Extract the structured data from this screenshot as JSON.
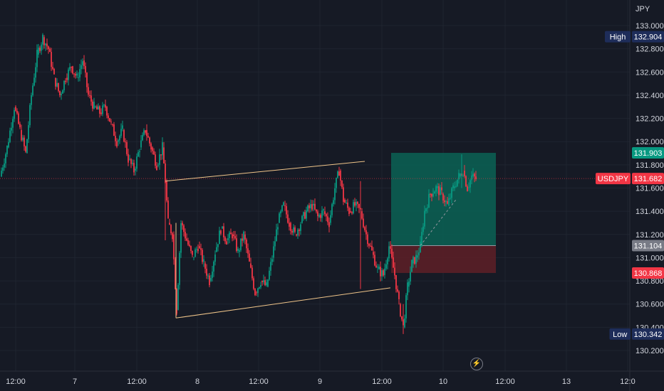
{
  "chart_data": {
    "type": "candlestick",
    "symbol": "USDJPY",
    "currency": "JPY",
    "price_axis": {
      "min": 130.1,
      "max": 133.1,
      "ticks": [
        "133.000",
        "132.800",
        "132.600",
        "132.400",
        "132.200",
        "132.000",
        "131.800",
        "131.600",
        "131.400",
        "131.200",
        "131.000",
        "130.800",
        "130.600",
        "130.400",
        "130.200"
      ],
      "tick_values": [
        133.0,
        132.8,
        132.6,
        132.4,
        132.2,
        132.0,
        131.8,
        131.6,
        131.4,
        131.2,
        131.0,
        130.8,
        130.6,
        130.4,
        130.2
      ]
    },
    "time_axis": {
      "labels": [
        "12:00",
        "7",
        "12:00",
        "8",
        "12:00",
        "9",
        "12:00",
        "10",
        "12:00",
        "13",
        "12:0"
      ],
      "slots": [
        22,
        105,
        192,
        277,
        363,
        449,
        536,
        622,
        709,
        795,
        881
      ]
    },
    "price_tags": {
      "high": {
        "label": "High",
        "value": "132.904",
        "price": 132.904,
        "color": "#1e2d5a"
      },
      "target": {
        "value": "131.903",
        "price": 131.903,
        "color": "#089981"
      },
      "current": {
        "label": "USDJPY",
        "value": "131.682",
        "price": 131.682,
        "color": "#f23645"
      },
      "entry": {
        "value": "131.104",
        "price": 131.104,
        "color": "#787b86"
      },
      "stop": {
        "value": "130.868",
        "price": 130.868,
        "color": "#f23645"
      },
      "low": {
        "label": "Low",
        "value": "130.342",
        "price": 130.342,
        "color": "#1e2d5a"
      }
    },
    "position": {
      "entry": 131.104,
      "target": 131.903,
      "stop": 130.868,
      "profit_color": "#0b5e52",
      "loss_color": "#5a1f27",
      "start_slot": 549,
      "end_slot": 696
    },
    "channel": {
      "upper": [
        [
          232,
          131.66
        ],
        [
          512,
          131.83
        ]
      ],
      "lower": [
        [
          247,
          130.48
        ],
        [
          548,
          130.74
        ]
      ],
      "color": "#f0c58a"
    },
    "candles_path": [
      [
        0,
        131.7
      ],
      [
        10,
        131.95
      ],
      [
        20,
        132.3
      ],
      [
        28,
        132.1
      ],
      [
        36,
        131.9
      ],
      [
        44,
        132.4
      ],
      [
        52,
        132.75
      ],
      [
        60,
        132.9
      ],
      [
        68,
        132.8
      ],
      [
        76,
        132.55
      ],
      [
        84,
        132.4
      ],
      [
        92,
        132.55
      ],
      [
        100,
        132.65
      ],
      [
        108,
        132.55
      ],
      [
        116,
        132.7
      ],
      [
        124,
        132.4
      ],
      [
        132,
        132.3
      ],
      [
        140,
        132.25
      ],
      [
        148,
        132.3
      ],
      [
        156,
        132.15
      ],
      [
        164,
        132.0
      ],
      [
        172,
        132.1
      ],
      [
        180,
        131.85
      ],
      [
        188,
        131.75
      ],
      [
        196,
        131.95
      ],
      [
        204,
        132.1
      ],
      [
        212,
        131.95
      ],
      [
        220,
        131.8
      ],
      [
        228,
        131.95
      ],
      [
        232,
        131.66
      ],
      [
        236,
        131.3
      ],
      [
        242,
        131.2
      ],
      [
        248,
        130.55
      ],
      [
        254,
        131.3
      ],
      [
        262,
        131.15
      ],
      [
        270,
        131.0
      ],
      [
        278,
        131.1
      ],
      [
        286,
        130.95
      ],
      [
        294,
        130.8
      ],
      [
        302,
        131.05
      ],
      [
        310,
        131.25
      ],
      [
        318,
        131.15
      ],
      [
        326,
        131.2
      ],
      [
        334,
        131.05
      ],
      [
        342,
        131.2
      ],
      [
        350,
        130.95
      ],
      [
        358,
        130.7
      ],
      [
        366,
        130.8
      ],
      [
        374,
        130.75
      ],
      [
        382,
        131.0
      ],
      [
        390,
        131.3
      ],
      [
        398,
        131.45
      ],
      [
        406,
        131.3
      ],
      [
        414,
        131.2
      ],
      [
        422,
        131.3
      ],
      [
        430,
        131.4
      ],
      [
        438,
        131.45
      ],
      [
        446,
        131.35
      ],
      [
        454,
        131.4
      ],
      [
        462,
        131.3
      ],
      [
        470,
        131.6
      ],
      [
        476,
        131.75
      ],
      [
        482,
        131.5
      ],
      [
        490,
        131.4
      ],
      [
        498,
        131.45
      ],
      [
        506,
        131.4
      ],
      [
        514,
        131.2
      ],
      [
        522,
        131.05
      ],
      [
        530,
        130.9
      ],
      [
        538,
        130.85
      ],
      [
        546,
        131.1
      ],
      [
        554,
        130.85
      ],
      [
        560,
        130.6
      ],
      [
        566,
        130.4
      ],
      [
        572,
        130.75
      ],
      [
        578,
        130.95
      ],
      [
        584,
        131.0
      ],
      [
        590,
        131.1
      ],
      [
        596,
        131.4
      ],
      [
        604,
        131.55
      ],
      [
        612,
        131.6
      ],
      [
        620,
        131.55
      ],
      [
        628,
        131.45
      ],
      [
        636,
        131.6
      ],
      [
        644,
        131.7
      ],
      [
        650,
        131.75
      ],
      [
        656,
        131.6
      ],
      [
        662,
        131.7
      ],
      [
        668,
        131.68
      ]
    ],
    "last_price": 131.682,
    "up_color": "#089981",
    "down_color": "#f23645"
  },
  "footer": {
    "bolt": "⚡"
  }
}
